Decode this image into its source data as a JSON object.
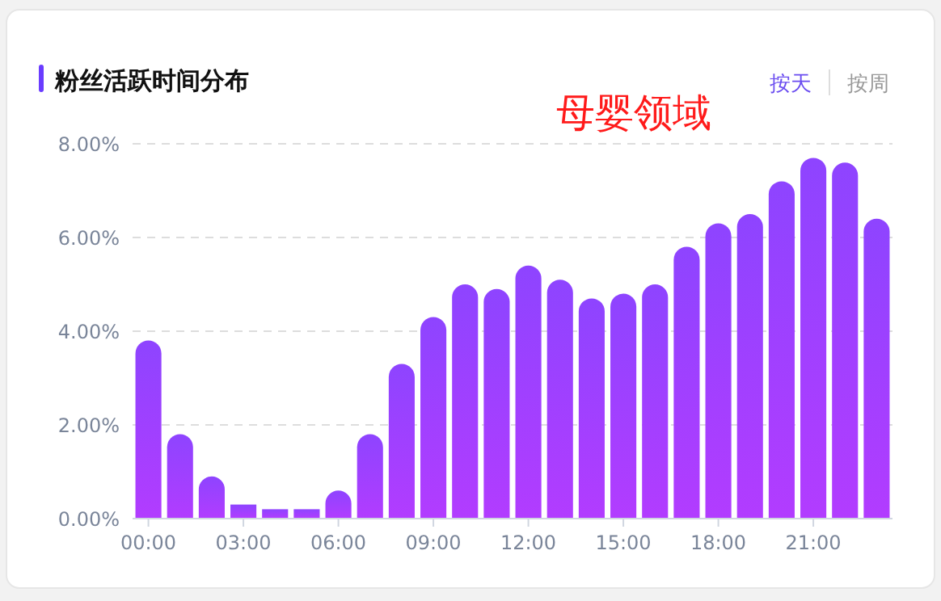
{
  "chart_data": {
    "type": "bar",
    "title": "粉丝活跃时间分布",
    "annotations": [
      "母婴领域",
      "按天",
      "按周"
    ],
    "categories": [
      "00:00",
      null,
      null,
      "03:00",
      null,
      null,
      "06:00",
      null,
      null,
      "09:00",
      null,
      null,
      "12:00",
      null,
      null,
      "15:00",
      null,
      null,
      "18:00",
      null,
      null,
      "21:00",
      null,
      null
    ],
    "values": [
      3.8,
      1.8,
      0.9,
      0.3,
      0.2,
      0.2,
      0.6,
      1.8,
      3.3,
      4.3,
      5.0,
      4.9,
      5.4,
      5.1,
      4.7,
      4.8,
      5.0,
      5.8,
      6.3,
      6.5,
      7.2,
      7.7,
      7.6,
      6.4
    ],
    "color": "#8e44ff",
    "ylim": [
      0,
      8
    ],
    "yticks": [
      {
        "value": 0,
        "label": "0.00%"
      },
      {
        "value": 2,
        "label": "2.00%"
      },
      {
        "value": 4,
        "label": "4.00%"
      },
      {
        "value": 6,
        "label": "6.00%"
      },
      {
        "value": 8,
        "label": "8.00%"
      }
    ],
    "grid": "y"
  }
}
